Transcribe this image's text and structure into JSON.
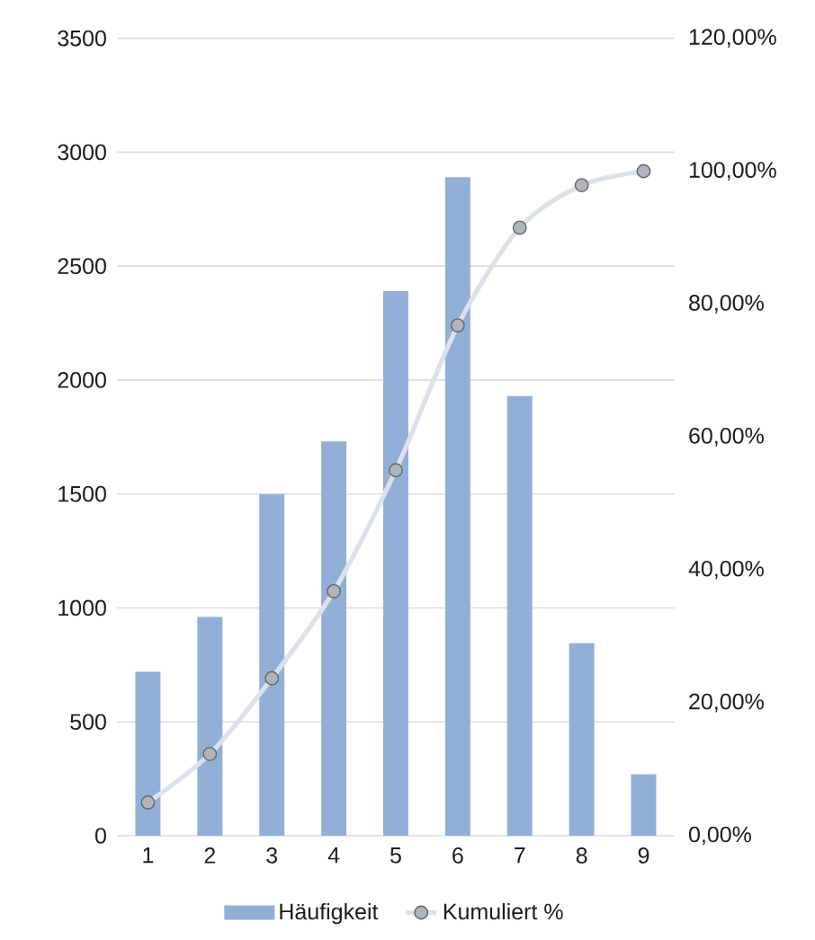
{
  "chart_data": {
    "type": "bar",
    "categories": [
      "1",
      "2",
      "3",
      "4",
      "5",
      "6",
      "7",
      "8",
      "9"
    ],
    "series": [
      {
        "name": "Häufigkeit",
        "color": "#92afd7",
        "values": [
          720,
          960,
          1500,
          1730,
          2390,
          2890,
          1930,
          845,
          270
        ]
      },
      {
        "name": "Kumuliert %",
        "type": "line",
        "axis": "y2",
        "color": "#dde1e9",
        "values": [
          5,
          12.3,
          23.7,
          36.8,
          55,
          76.8,
          91.5,
          97.9,
          100
        ]
      }
    ],
    "ylim": [
      0,
      3500
    ],
    "yticks": [
      0,
      500,
      1000,
      1500,
      2000,
      2500,
      3000,
      3500
    ],
    "y2lim": [
      0,
      120
    ],
    "y2ticks": [
      {
        "value": 0,
        "label": "0,00%"
      },
      {
        "value": 20,
        "label": "20,00%"
      },
      {
        "value": 40,
        "label": "40,00%"
      },
      {
        "value": 60,
        "label": "60,00%"
      },
      {
        "value": 80,
        "label": "80,00%"
      },
      {
        "value": 100,
        "label": "100,00%"
      },
      {
        "value": 120,
        "label": "120,00%"
      }
    ],
    "grid": "y",
    "legend": "bottom",
    "marker": "circle"
  }
}
